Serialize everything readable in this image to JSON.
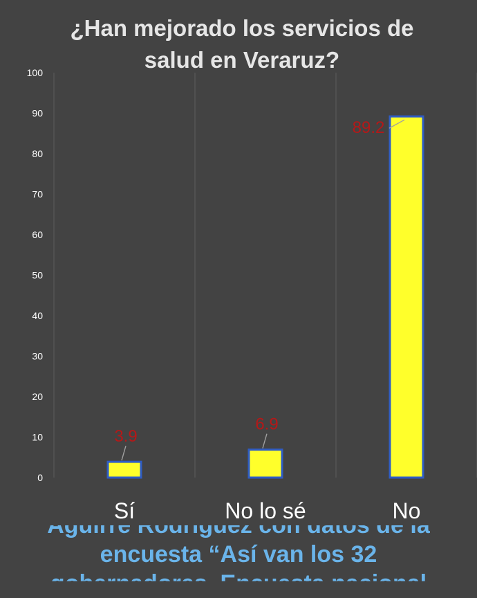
{
  "chart_data": {
    "type": "bar",
    "title": [
      "¿Han mejorado los servicios de",
      "salud en Veraruz?"
    ],
    "categories": [
      "Sí",
      "No lo sé",
      "No"
    ],
    "values": [
      3.9,
      6.9,
      89.2
    ],
    "data_labels": [
      "3.9",
      "6.9",
      "89.2"
    ],
    "ylim": [
      0,
      100
    ],
    "yticks": [
      0,
      10,
      20,
      30,
      40,
      50,
      60,
      70,
      80,
      90,
      100
    ],
    "grid": "vertical",
    "legend": "none",
    "colors": {
      "background": "#434343",
      "bar_fill": "#ffff2b",
      "bar_edge": "#2f5cc4",
      "data_label": "#b51818",
      "tick_label": "#ffffff",
      "grid": "#595959",
      "title": "#e6e6e6"
    }
  },
  "caption": {
    "lines": [
      "Aguirre Rodríguez con datos de la",
      "encuesta “Así van los 32",
      "gobernadores. Encuesta nacional"
    ],
    "color": "#6ab4ea"
  }
}
